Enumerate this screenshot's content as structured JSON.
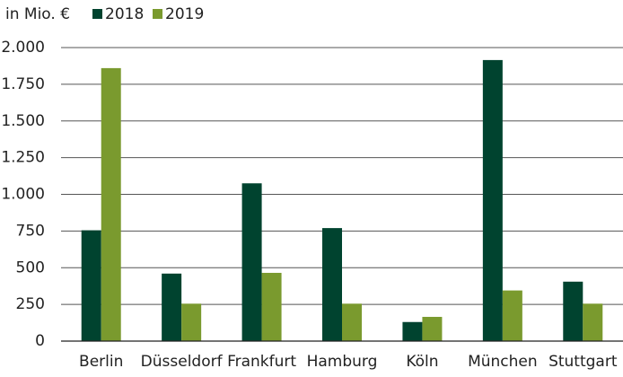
{
  "chart_data": {
    "type": "bar",
    "ylabel": "in Mio. €",
    "categories": [
      "Berlin",
      "Düsseldorf",
      "Frankfurt",
      "Hamburg",
      "Köln",
      "München",
      "Stuttgart"
    ],
    "series": [
      {
        "name": "2018",
        "color": "#00432f",
        "values": [
          755,
          460,
          1075,
          770,
          130,
          1915,
          405
        ]
      },
      {
        "name": "2019",
        "color": "#7a9a2e",
        "values": [
          1860,
          255,
          465,
          255,
          165,
          345,
          255
        ]
      }
    ],
    "ylim": [
      0,
      2000
    ],
    "yticks": [
      0,
      250,
      500,
      750,
      {
        "value": 1000,
        "label": "1.000"
      },
      {
        "value": 1250,
        "label": "1.250"
      },
      {
        "value": 1500,
        "label": "1.500"
      },
      {
        "value": 1750,
        "label": "1.750"
      },
      {
        "value": 2000,
        "label": "2.000"
      }
    ],
    "grid": true
  }
}
